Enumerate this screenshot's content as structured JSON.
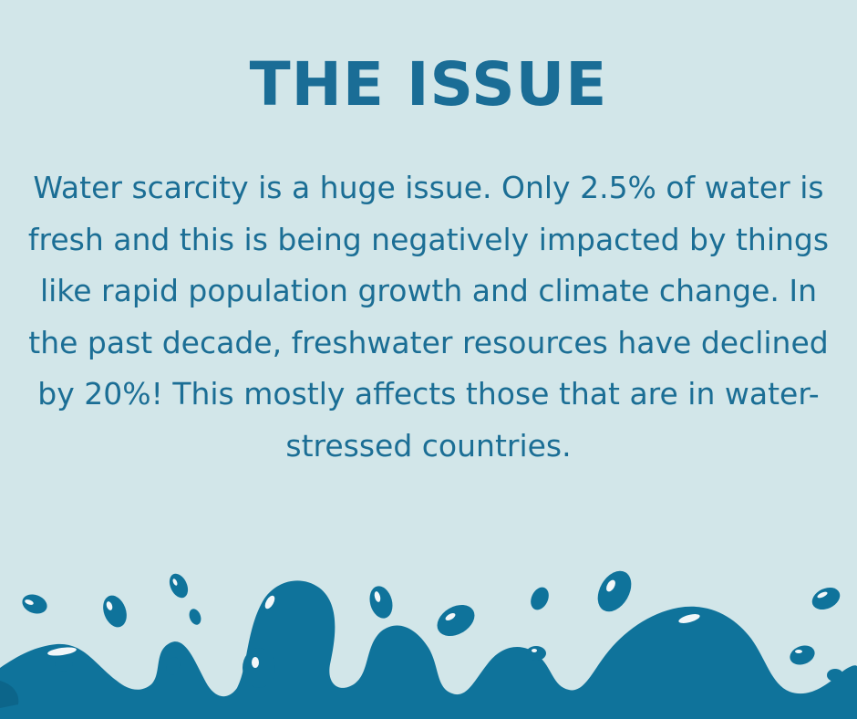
{
  "heading": "THE ISSUE",
  "paragraph": "Water scarcity is a huge issue. Only 2.5% of water is fresh and this is being negatively impacted by things like rapid population growth and climate change. In the past decade, freshwater resources have declined by 20%! This mostly affects those that are in water-stressed countries.",
  "colors": {
    "background": "#d2e6e9",
    "accent": "#1b6e95",
    "wave": "#0f739b"
  },
  "decoration": "water-splash-waves"
}
